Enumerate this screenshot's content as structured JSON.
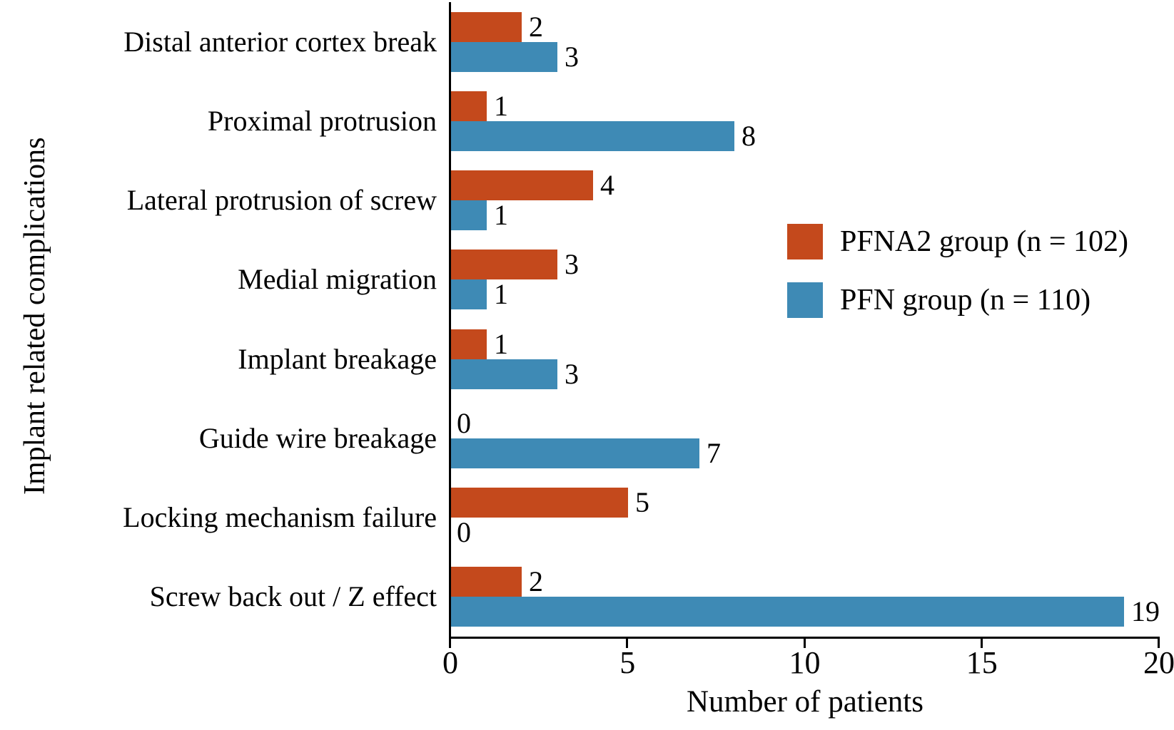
{
  "chart_data": {
    "type": "bar",
    "orientation": "horizontal",
    "title": "",
    "xlabel": "Number of patients",
    "ylabel": "Implant related complications",
    "xlim": [
      0,
      20
    ],
    "xticks": [
      0,
      5,
      10,
      15,
      20
    ],
    "grid": false,
    "legend_position": "center-right",
    "bar_value_labels_shown": true,
    "categories": [
      "Distal anterior cortex break",
      "Proximal protrusion",
      "Lateral protrusion of screw",
      "Medial migration",
      "Implant breakage",
      "Guide wire breakage",
      "Locking mechanism failure",
      "Screw back out / Z effect"
    ],
    "series": [
      {
        "name": "PFNA2 group (n = 102)",
        "color": "#C4491C",
        "values": [
          2,
          1,
          4,
          3,
          1,
          0,
          5,
          2
        ]
      },
      {
        "name": "PFN group (n = 110)",
        "color": "#3E8AB5",
        "values": [
          3,
          8,
          1,
          1,
          3,
          7,
          0,
          19
        ]
      }
    ]
  },
  "colors": {
    "axis": "#000000",
    "text": "#000000",
    "background": "#FFFFFF"
  }
}
